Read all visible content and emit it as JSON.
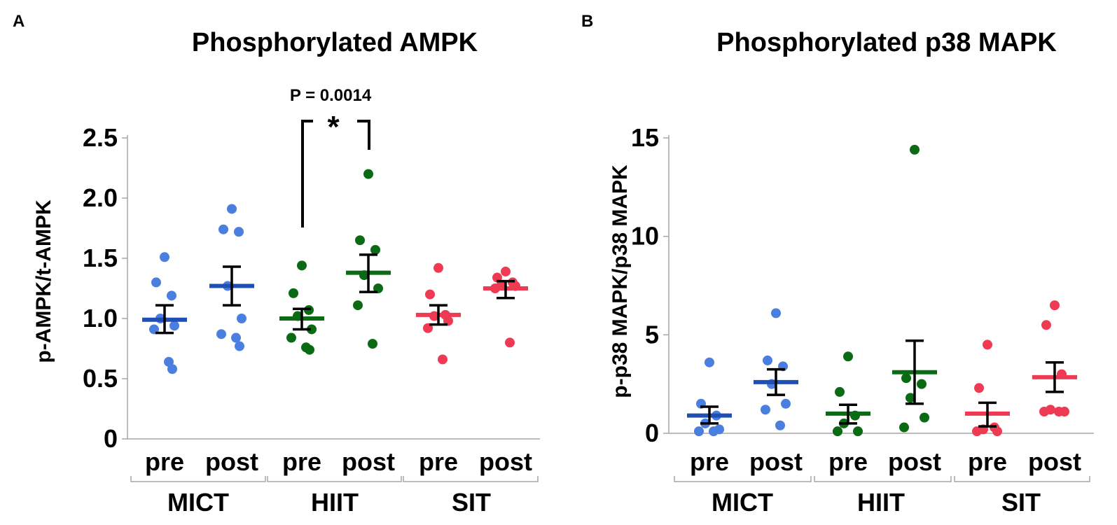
{
  "colors": {
    "MICT_point": "#4a7fe0",
    "MICT_mean": "#1f4fb3",
    "HIIT_point": "#0b6b14",
    "HIIT_mean": "#0b6b14",
    "SIT_point": "#ee3a52",
    "SIT_mean": "#ee3a52",
    "error_bar": "#000000",
    "axis": "#a6a6a6"
  },
  "chart_data": [
    {
      "panel_label": "A",
      "type": "scatter",
      "title": "Phosphorylated AMPK",
      "ylabel": "p-AMPK/t-AMPK",
      "ylim": [
        0,
        2.5
      ],
      "yticks": [
        "0",
        "0.5",
        "1.0",
        "1.5",
        "2.0",
        "2.5"
      ],
      "ytick_values": [
        0,
        0.5,
        1.0,
        1.5,
        2.0,
        2.5
      ],
      "groups": [
        {
          "name": "MICT",
          "conditions": [
            {
              "label": "pre",
              "mean": 0.99,
              "sem_low": 0.88,
              "sem_high": 1.11,
              "points": [
                1.51,
                1.3,
                1.19,
                1.0,
                0.94,
                0.91,
                0.64,
                0.58
              ]
            },
            {
              "label": "post",
              "mean": 1.27,
              "sem_low": 1.11,
              "sem_high": 1.43,
              "points": [
                1.91,
                1.74,
                1.72,
                1.27,
                1.0,
                0.87,
                0.84,
                0.77
              ]
            }
          ]
        },
        {
          "name": "HIIT",
          "conditions": [
            {
              "label": "pre",
              "mean": 1.0,
              "sem_low": 0.91,
              "sem_high": 1.08,
              "points": [
                1.44,
                1.21,
                1.07,
                1.02,
                0.91,
                0.84,
                0.76,
                0.74
              ]
            },
            {
              "label": "post",
              "mean": 1.38,
              "sem_low": 1.22,
              "sem_high": 1.53,
              "points": [
                2.2,
                1.65,
                1.57,
                1.36,
                1.25,
                1.11,
                0.79
              ]
            }
          ]
        },
        {
          "name": "SIT",
          "conditions": [
            {
              "label": "pre",
              "mean": 1.03,
              "sem_low": 0.95,
              "sem_high": 1.11,
              "points": [
                1.42,
                1.2,
                1.03,
                1.02,
                0.98,
                0.92,
                0.66
              ]
            },
            {
              "label": "post",
              "mean": 1.25,
              "sem_low": 1.17,
              "sem_high": 1.31,
              "points": [
                1.39,
                1.34,
                1.3,
                1.28,
                1.27,
                1.25,
                0.8
              ]
            }
          ]
        }
      ],
      "annotation": {
        "text": "P = 0.0014",
        "marker": "*",
        "between": [
          "HIIT pre",
          "HIIT post"
        ]
      }
    },
    {
      "panel_label": "B",
      "type": "scatter",
      "title": "Phosphorylated p38 MAPK",
      "ylabel": "p-p38 MAPK/p38 MAPK",
      "ylim": [
        0,
        15
      ],
      "yticks": [
        "0",
        "5",
        "10",
        "15"
      ],
      "ytick_values": [
        0,
        5,
        10,
        15
      ],
      "groups": [
        {
          "name": "MICT",
          "conditions": [
            {
              "label": "pre",
              "mean": 0.9,
              "sem_low": 0.5,
              "sem_high": 1.35,
              "points": [
                3.6,
                1.5,
                0.9,
                0.5,
                0.2,
                0.1,
                0.1
              ]
            },
            {
              "label": "post",
              "mean": 2.6,
              "sem_low": 1.95,
              "sem_high": 3.25,
              "points": [
                6.1,
                3.7,
                3.4,
                2.5,
                1.5,
                1.2,
                0.4
              ]
            }
          ]
        },
        {
          "name": "HIIT",
          "conditions": [
            {
              "label": "pre",
              "mean": 1.0,
              "sem_low": 0.5,
              "sem_high": 1.45,
              "points": [
                3.9,
                2.1,
                0.9,
                0.5,
                0.1,
                0.1
              ]
            },
            {
              "label": "post",
              "mean": 3.1,
              "sem_low": 1.5,
              "sem_high": 4.7,
              "points": [
                14.4,
                2.8,
                2.5,
                1.8,
                0.8,
                0.3
              ]
            }
          ]
        },
        {
          "name": "SIT",
          "conditions": [
            {
              "label": "pre",
              "mean": 1.0,
              "sem_low": 0.35,
              "sem_high": 1.55,
              "points": [
                4.5,
                2.3,
                0.3,
                0.2,
                0.1,
                0.1
              ]
            },
            {
              "label": "post",
              "mean": 2.85,
              "sem_low": 2.1,
              "sem_high": 3.6,
              "points": [
                6.5,
                5.5,
                3.0,
                1.2,
                1.1,
                1.1,
                1.1
              ]
            }
          ]
        }
      ]
    }
  ]
}
